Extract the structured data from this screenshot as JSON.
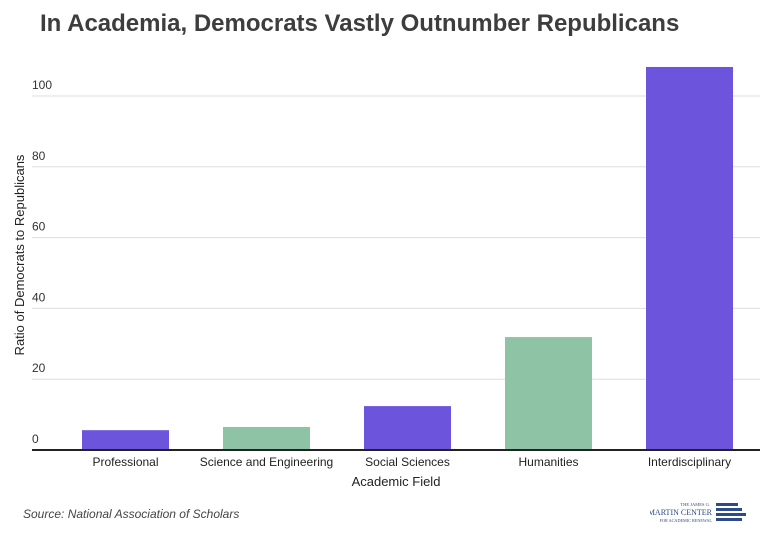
{
  "chart_data": {
    "type": "bar",
    "title": "In Academia, Democrats Vastly Outnumber Republicans",
    "xlabel": "Academic Field",
    "ylabel": "Ratio of Democrats to Republicans",
    "categories": [
      "Professional",
      "Science and Engineering",
      "Social Sciences",
      "Humanities",
      "Interdisciplinary"
    ],
    "values": [
      5.6,
      6.5,
      12.4,
      31.9,
      108.2
    ],
    "colors": [
      "#6c54dc",
      "#8fc3a6",
      "#6c54dc",
      "#8fc3a6",
      "#6c54dc"
    ],
    "ylim": [
      0,
      110
    ],
    "yticks": [
      0,
      20,
      40,
      60,
      80,
      100
    ],
    "grid": true,
    "legend": "none"
  },
  "source": "Source: National Association of Scholars",
  "logo": {
    "line1": "THE JAMES G.",
    "line2": "MARTIN CENTER",
    "line3": "FOR ACADEMIC RENEWAL"
  }
}
